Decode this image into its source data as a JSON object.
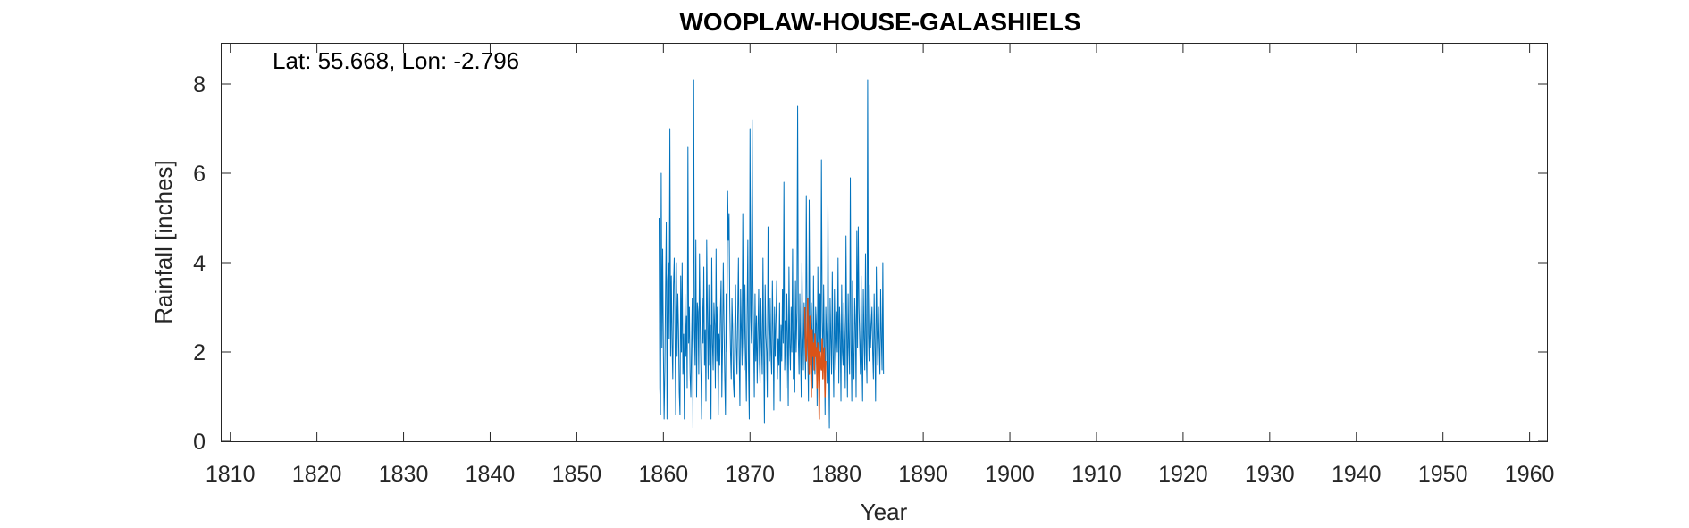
{
  "chart_data": {
    "type": "line",
    "title": "WOOPLAW-HOUSE-GALASHIELS",
    "xlabel": "Year",
    "ylabel": "Rainfall [inches]",
    "annotation": "Lat: 55.668, Lon: -2.796",
    "xlim": [
      1809,
      1962
    ],
    "ylim": [
      0,
      8.9
    ],
    "xticks": [
      1810,
      1820,
      1830,
      1840,
      1850,
      1860,
      1870,
      1880,
      1890,
      1900,
      1910,
      1920,
      1930,
      1940,
      1950,
      1960
    ],
    "yticks": [
      0,
      2,
      4,
      6,
      8
    ],
    "grid": false,
    "series": [
      {
        "color": "#0072BD",
        "x_start": 1859.5,
        "x_step": 0.08333,
        "values": [
          5.0,
          1.2,
          0.6,
          6.0,
          2.1,
          4.3,
          2.0,
          0.5,
          1.6,
          3.4,
          4.9,
          0.5,
          3.6,
          4.0,
          2.3,
          7.0,
          1.9,
          3.7,
          2.2,
          1.4,
          3.5,
          4.1,
          2.6,
          0.6,
          4.0,
          1.9,
          3.3,
          2.5,
          1.1,
          0.6,
          3.7,
          2.0,
          4.0,
          1.5,
          2.4,
          0.5,
          3.3,
          1.9,
          2.8,
          1.2,
          6.6,
          2.2,
          3.0,
          1.5,
          1.0,
          2.2,
          3.2,
          0.3,
          8.1,
          2.5,
          1.7,
          4.5,
          1.0,
          3.1,
          2.9,
          1.5,
          4.2,
          2.6,
          1.6,
          0.5,
          3.2,
          2.2,
          3.9,
          1.7,
          2.5,
          0.9,
          4.5,
          2.8,
          1.4,
          3.5,
          1.7,
          2.6,
          0.5,
          4.1,
          2.2,
          1.6,
          3.1,
          2.6,
          1.2,
          4.3,
          1.8,
          3.0,
          0.6,
          2.4,
          1.7,
          2.9,
          3.6,
          1.0,
          2.2,
          4.0,
          2.6,
          1.4,
          0.6,
          3.3,
          2.0,
          5.6,
          4.5,
          5.1,
          3.0,
          2.0,
          1.4,
          3.2,
          2.5,
          1.3,
          1.0,
          2.6,
          3.5,
          2.1,
          1.5,
          2.8,
          4.1,
          1.9,
          0.8,
          3.4,
          2.5,
          1.7,
          5.1,
          2.2,
          1.6,
          3.5,
          2.0,
          0.9,
          2.8,
          4.5,
          1.6,
          0.5,
          7.0,
          2.8,
          2.2,
          7.2,
          3.6,
          2.3,
          1.0,
          3.3,
          1.8,
          2.8,
          1.3,
          2.4,
          3.4,
          1.8,
          1.3,
          3.2,
          2.2,
          1.5,
          4.1,
          2.1,
          0.4,
          3.5,
          2.4,
          2.0,
          1.0,
          4.8,
          2.6,
          1.8,
          3.2,
          2.0,
          1.5,
          3.6,
          2.4,
          0.7,
          3.0,
          1.9,
          2.7,
          3.6,
          1.4,
          2.3,
          1.7,
          3.1,
          0.9,
          2.6,
          1.8,
          3.4,
          2.2,
          5.8,
          1.6,
          2.7,
          1.2,
          3.3,
          2.4,
          0.8,
          3.9,
          2.2,
          1.6,
          3.0,
          2.0,
          4.3,
          1.4,
          2.5,
          1.1,
          3.6,
          2.0,
          2.9,
          7.5,
          2.3,
          1.5,
          3.3,
          2.0,
          1.0,
          4.0,
          2.4,
          1.6,
          3.1,
          2.2,
          1.4,
          5.5,
          3.0,
          2.0,
          0.9,
          5.4,
          2.5,
          1.7,
          3.1,
          2.3,
          1.2,
          3.7,
          2.0,
          1.5,
          3.0,
          2.6,
          0.8,
          3.9,
          2.2,
          1.4,
          3.3,
          2.0,
          6.3,
          2.7,
          1.6,
          3.5,
          2.1,
          0.6,
          3.0,
          2.4,
          1.3,
          5.3,
          1.8,
          0.3,
          3.2,
          2.3,
          1.5,
          3.8,
          2.0,
          1.0,
          3.4,
          2.2,
          1.6,
          2.9,
          2.0,
          4.1,
          1.3,
          3.0,
          2.4,
          0.9,
          3.5,
          2.0,
          1.7,
          3.1,
          2.3,
          1.2,
          4.6,
          2.5,
          1.0,
          3.3,
          2.1,
          1.5,
          5.9,
          2.2,
          0.9,
          3.6,
          2.0,
          1.4,
          3.2,
          2.6,
          1.0,
          4.7,
          2.1,
          4.8,
          3.0,
          2.2,
          1.5,
          3.7,
          1.9,
          0.9,
          3.4,
          2.3,
          1.6,
          4.2,
          2.0,
          1.3,
          8.1,
          2.4,
          1.8,
          3.5,
          2.1,
          2.6,
          3.0,
          2.0,
          1.4,
          3.3,
          2.2,
          0.9,
          3.9,
          2.5,
          1.7,
          3.0,
          2.1,
          1.5,
          3.4,
          2.3,
          1.6,
          4.0,
          1.5
        ]
      },
      {
        "color": "#D95319",
        "x_start": 1876.33,
        "x_step": 0.08333,
        "values": [
          3.0,
          2.1,
          1.8,
          2.5,
          3.2,
          2.0,
          1.5,
          2.8,
          2.2,
          1.0,
          2.5,
          1.9,
          2.2,
          1.6,
          2.4,
          1.9,
          2.1,
          1.2,
          2.2,
          1.8,
          0.5,
          2.0,
          1.7,
          1.6,
          2.3,
          1.4,
          1.9,
          2.1,
          1.0,
          1.8
        ]
      }
    ]
  }
}
